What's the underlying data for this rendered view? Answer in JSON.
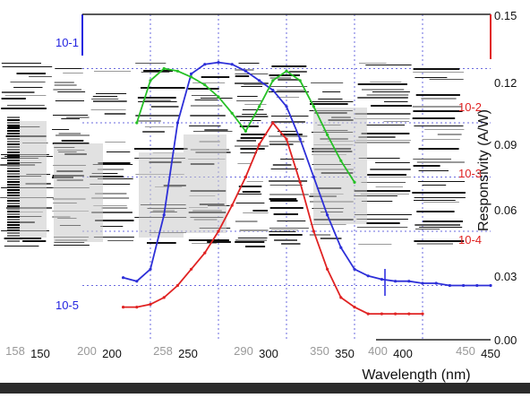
{
  "chart_data": {
    "type": "line",
    "xlabel": "Wavelength (nm)",
    "ylabel": "Responsivity (A/W)",
    "x_ticks": [
      "150",
      "200",
      "250",
      "300",
      "350",
      "400",
      "450"
    ],
    "x_ticks_ghost": [
      "158",
      "200",
      "258",
      "290",
      "350",
      "400",
      "450"
    ],
    "left_y_ticks": [
      "10-1",
      "10-5"
    ],
    "right_y_ticks_red": [
      "10-2",
      "10-3",
      "10-4"
    ],
    "right_y_ticks_linear": [
      "0.15",
      "0.12",
      "0.09",
      "0.06",
      "0.03",
      "0.00"
    ],
    "grid": true,
    "series": [
      {
        "color": "#2d2fd8",
        "x": [
          180,
          190,
          200,
          210,
          220,
          230,
          240,
          250,
          260,
          270,
          280,
          290,
          300,
          310,
          320,
          330,
          340,
          350,
          360,
          370,
          380,
          390,
          400,
          410,
          420,
          430,
          440,
          450
        ],
        "y": [
          1.4e-05,
          1.2e-05,
          2e-05,
          0.0002,
          0.01,
          0.08,
          0.12,
          0.13,
          0.12,
          0.09,
          0.06,
          0.04,
          0.02,
          0.005,
          0.001,
          0.0002,
          5e-05,
          2e-05,
          1.5e-05,
          1.3e-05,
          1.2e-05,
          1.2e-05,
          1.1e-05,
          1.1e-05,
          1e-05,
          1e-05,
          1e-05,
          1e-05
        ]
      },
      {
        "color": "#e02323",
        "x": [
          180,
          190,
          200,
          210,
          220,
          230,
          240,
          250,
          260,
          270,
          280,
          290,
          300,
          310,
          320,
          330,
          340,
          350,
          360,
          370,
          380,
          390,
          400
        ],
        "y": [
          4e-06,
          4e-06,
          4.5e-06,
          6e-06,
          1e-05,
          2e-05,
          4e-05,
          0.0001,
          0.0003,
          0.001,
          0.004,
          0.01,
          0.005,
          0.0008,
          0.0001,
          2e-05,
          6e-06,
          4e-06,
          3e-06,
          3e-06,
          3e-06,
          3e-06,
          3e-06
        ]
      },
      {
        "color": "#26c026",
        "x": [
          190,
          200,
          210,
          220,
          230,
          240,
          250,
          260,
          270,
          280,
          290,
          300,
          310,
          320,
          330,
          340,
          350
        ],
        "y": [
          0.01,
          0.06,
          0.1,
          0.09,
          0.07,
          0.05,
          0.03,
          0.015,
          0.007,
          0.02,
          0.06,
          0.09,
          0.06,
          0.02,
          0.006,
          0.002,
          0.0008
        ]
      }
    ]
  }
}
